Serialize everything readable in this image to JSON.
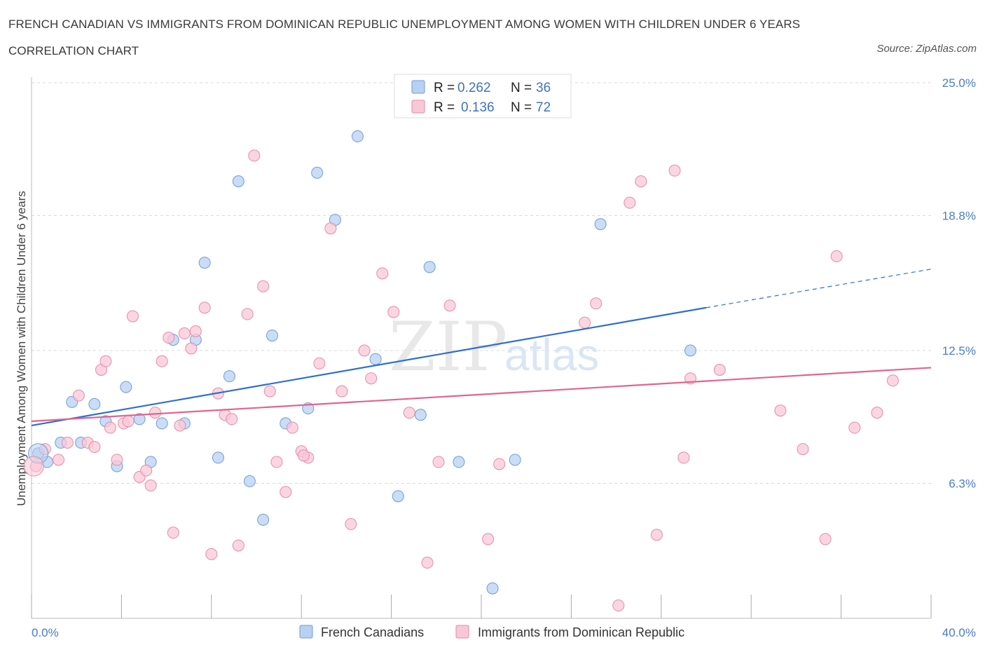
{
  "title": "FRENCH CANADIAN VS IMMIGRANTS FROM DOMINICAN REPUBLIC UNEMPLOYMENT AMONG WOMEN WITH CHILDREN UNDER 6 YEARS CORRELATION CHART",
  "source": "Source: ZipAtlas.com",
  "watermark": {
    "zip": "ZIP",
    "atlas": "atlas"
  },
  "legend": {
    "r_label": "R =",
    "n_label": "N =",
    "rows": [
      {
        "r": "0.262",
        "n": "36",
        "color": "#b8d1f3"
      },
      {
        "r": "0.136",
        "n": "72",
        "color": "#f9c8d7"
      }
    ]
  },
  "bottom_legend": [
    {
      "label": "French Canadians",
      "color": "#b8d1f3"
    },
    {
      "label": "Immigrants from Dominican Republic",
      "color": "#f9c8d7"
    }
  ],
  "chart_data": {
    "type": "scatter",
    "title": "",
    "xlabel": "",
    "ylabel": "Unemployment Among Women with Children Under 6 years",
    "xlim": [
      0,
      40
    ],
    "ylim": [
      0,
      25
    ],
    "x_ticks_labels": [
      "0.0%",
      "40.0%"
    ],
    "y_ticks": [
      6.3,
      12.5,
      18.8,
      25.0
    ],
    "y_ticks_labels": [
      "6.3%",
      "12.5%",
      "18.8%",
      "25.0%"
    ],
    "grid": true,
    "series": [
      {
        "name": "French Canadians",
        "color": "#b8d1f3",
        "stroke": "#6f9bd8",
        "trend": {
          "x0": 0,
          "y0": 9.0,
          "x1": 30,
          "y1": 14.5,
          "dash_to_x": 40,
          "dash_to_y": 16.3,
          "color": "#2f6fcd"
        },
        "points": [
          [
            0.3,
            7.7
          ],
          [
            0.7,
            7.3
          ],
          [
            1.3,
            8.2
          ],
          [
            1.8,
            10.1
          ],
          [
            2.2,
            8.2
          ],
          [
            2.8,
            10.0
          ],
          [
            3.3,
            9.2
          ],
          [
            3.8,
            7.1
          ],
          [
            4.2,
            10.8
          ],
          [
            4.8,
            9.3
          ],
          [
            5.3,
            7.3
          ],
          [
            5.8,
            9.1
          ],
          [
            6.3,
            13.0
          ],
          [
            6.8,
            9.1
          ],
          [
            7.3,
            13.0
          ],
          [
            7.7,
            16.6
          ],
          [
            8.3,
            7.5
          ],
          [
            8.8,
            11.3
          ],
          [
            9.2,
            20.4
          ],
          [
            9.7,
            6.4
          ],
          [
            10.3,
            4.6
          ],
          [
            10.7,
            13.2
          ],
          [
            11.3,
            9.1
          ],
          [
            12.3,
            9.8
          ],
          [
            12.7,
            20.8
          ],
          [
            13.5,
            18.6
          ],
          [
            14.5,
            22.5
          ],
          [
            15.3,
            12.1
          ],
          [
            16.3,
            5.7
          ],
          [
            17.3,
            9.5
          ],
          [
            17.7,
            16.4
          ],
          [
            19.0,
            7.3
          ],
          [
            20.5,
            1.4
          ],
          [
            21.5,
            7.4
          ],
          [
            25.3,
            18.4
          ],
          [
            29.3,
            12.5
          ]
        ]
      },
      {
        "name": "Immigrants from Dominican Republic",
        "color": "#f9c8d7",
        "stroke": "#e88aa7",
        "trend": {
          "x0": 0,
          "y0": 9.2,
          "x1": 40,
          "y1": 11.7,
          "color": "#e2648f"
        },
        "points": [
          [
            0.2,
            7.1
          ],
          [
            0.6,
            7.9
          ],
          [
            1.2,
            7.4
          ],
          [
            1.6,
            8.2
          ],
          [
            2.1,
            10.4
          ],
          [
            2.5,
            8.2
          ],
          [
            2.8,
            8.0
          ],
          [
            3.1,
            11.6
          ],
          [
            3.3,
            12.0
          ],
          [
            3.5,
            8.9
          ],
          [
            3.8,
            7.4
          ],
          [
            4.1,
            9.1
          ],
          [
            4.3,
            9.2
          ],
          [
            4.5,
            14.1
          ],
          [
            4.8,
            6.6
          ],
          [
            5.1,
            6.9
          ],
          [
            5.3,
            6.2
          ],
          [
            5.5,
            9.6
          ],
          [
            5.8,
            12.0
          ],
          [
            6.1,
            13.1
          ],
          [
            6.3,
            4.0
          ],
          [
            6.6,
            9.0
          ],
          [
            6.8,
            13.3
          ],
          [
            7.1,
            12.6
          ],
          [
            7.3,
            13.4
          ],
          [
            7.7,
            14.5
          ],
          [
            8.0,
            3.0
          ],
          [
            8.3,
            10.5
          ],
          [
            8.6,
            9.5
          ],
          [
            8.9,
            9.3
          ],
          [
            9.2,
            3.4
          ],
          [
            9.6,
            14.2
          ],
          [
            9.9,
            21.6
          ],
          [
            10.3,
            15.5
          ],
          [
            10.6,
            10.6
          ],
          [
            10.9,
            7.3
          ],
          [
            11.3,
            5.9
          ],
          [
            11.6,
            8.9
          ],
          [
            12.0,
            7.8
          ],
          [
            12.3,
            7.5
          ],
          [
            12.8,
            11.9
          ],
          [
            13.3,
            18.2
          ],
          [
            13.8,
            10.6
          ],
          [
            14.2,
            4.4
          ],
          [
            14.8,
            12.5
          ],
          [
            15.1,
            11.2
          ],
          [
            15.6,
            16.1
          ],
          [
            16.1,
            14.3
          ],
          [
            16.8,
            9.6
          ],
          [
            17.6,
            2.6
          ],
          [
            18.1,
            7.3
          ],
          [
            18.6,
            14.6
          ],
          [
            20.3,
            3.7
          ],
          [
            20.8,
            7.2
          ],
          [
            24.6,
            13.8
          ],
          [
            25.1,
            14.7
          ],
          [
            26.1,
            0.6
          ],
          [
            26.6,
            19.4
          ],
          [
            27.1,
            20.4
          ],
          [
            27.8,
            3.9
          ],
          [
            28.6,
            20.9
          ],
          [
            29.0,
            7.5
          ],
          [
            29.3,
            11.2
          ],
          [
            30.6,
            11.6
          ],
          [
            33.3,
            9.7
          ],
          [
            34.3,
            7.9
          ],
          [
            35.3,
            3.7
          ],
          [
            35.8,
            16.9
          ],
          [
            36.6,
            8.9
          ],
          [
            37.6,
            9.6
          ],
          [
            38.3,
            11.1
          ],
          [
            12.1,
            7.6
          ]
        ]
      }
    ]
  }
}
